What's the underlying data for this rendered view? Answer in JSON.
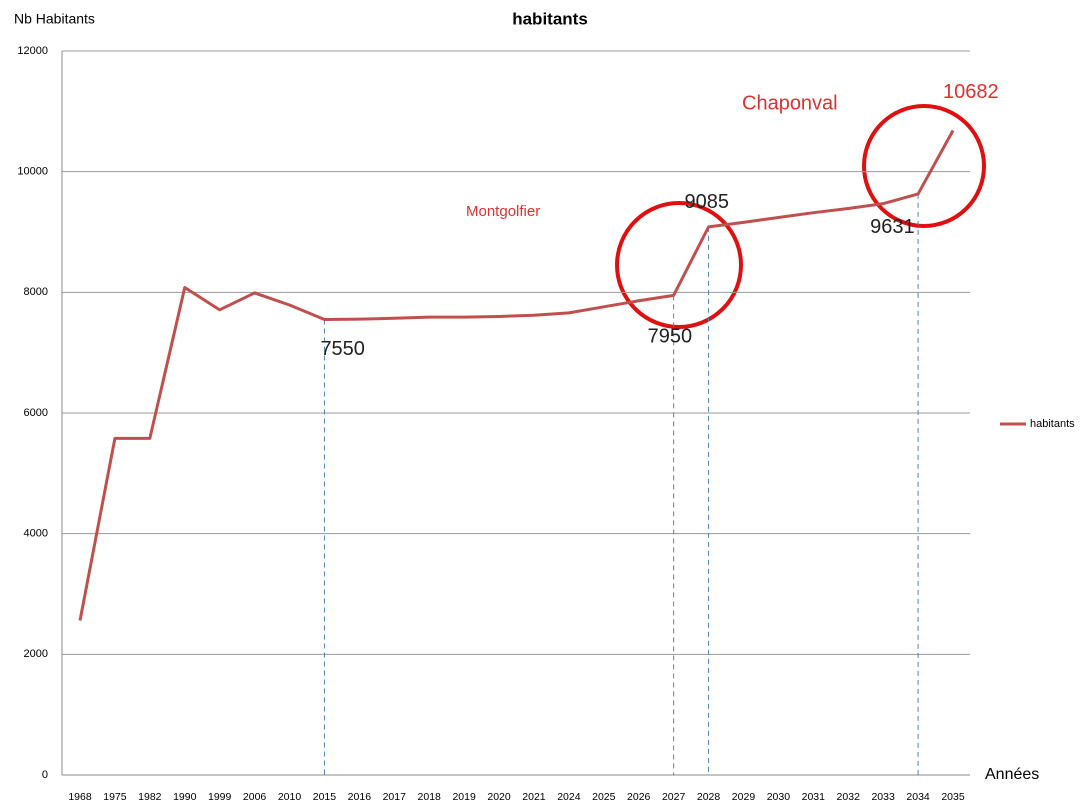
{
  "chart_data": {
    "type": "line",
    "title": "habitants",
    "y_label": "Nb Habitants",
    "x_label": "Années",
    "categories": [
      "1968",
      "1975",
      "1982",
      "1990",
      "1999",
      "2006",
      "2010",
      "2015",
      "2016",
      "2017",
      "2018",
      "2019",
      "2020",
      "2021",
      "2024",
      "2025",
      "2026",
      "2027",
      "2028",
      "2029",
      "2030",
      "2031",
      "2032",
      "2033",
      "2034",
      "2035"
    ],
    "series": [
      {
        "name": "habitants",
        "color": "#c0504d",
        "values": [
          2560,
          5580,
          5580,
          8080,
          7710,
          7990,
          7790,
          7550,
          7555,
          7570,
          7590,
          7590,
          7600,
          7620,
          7660,
          7760,
          7860,
          7950,
          9085,
          9160,
          9240,
          9320,
          9390,
          9470,
          9631,
          10682
        ],
        "value_labels": [
          null,
          null,
          null,
          null,
          null,
          null,
          null,
          "7550",
          null,
          null,
          null,
          null,
          null,
          null,
          null,
          null,
          null,
          "7950",
          "9085",
          null,
          null,
          null,
          null,
          null,
          "9631",
          "10682"
        ]
      }
    ],
    "annotations": [
      "Montgolfier",
      "Chaponval"
    ],
    "ylim": [
      0,
      12000
    ],
    "yticks": [
      0,
      2000,
      4000,
      6000,
      8000,
      10000,
      12000
    ],
    "grid": true,
    "legend": "right"
  }
}
